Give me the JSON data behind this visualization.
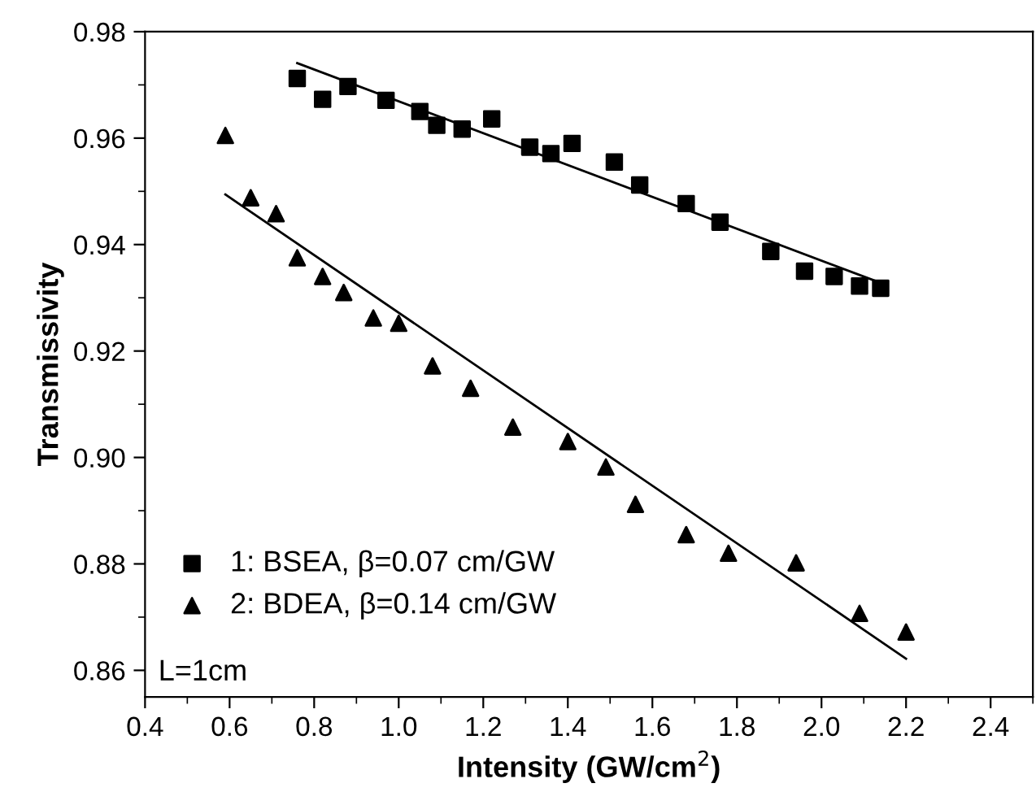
{
  "chart_data": {
    "type": "scatter",
    "xlabel": "Intensity (GW/cm$^{2}$)",
    "ylabel": "Transmissivity",
    "series": [
      {
        "name": "1: BSEA, β=0.07 cm/GW",
        "color": "#000000",
        "marker": "square",
        "x": [
          0.76,
          0.82,
          0.88,
          0.97,
          1.05,
          1.09,
          1.15,
          1.22,
          1.31,
          1.36,
          1.41,
          1.51,
          1.57,
          1.68,
          1.76,
          1.88,
          1.96,
          2.03,
          2.09,
          2.14
        ],
        "values": [
          0.9712,
          0.9673,
          0.9697,
          0.9671,
          0.965,
          0.9624,
          0.9617,
          0.9636,
          0.9583,
          0.9571,
          0.959,
          0.9555,
          0.9512,
          0.9477,
          0.9442,
          0.9387,
          0.935,
          0.934,
          0.9322,
          0.9318
        ]
      },
      {
        "name": "2: BDEA, β=0.14 cm/GW",
        "color": "#000000",
        "marker": "triangle",
        "x": [
          0.59,
          0.65,
          0.71,
          0.76,
          0.82,
          0.87,
          0.94,
          1.0,
          1.08,
          1.17,
          1.27,
          1.4,
          1.49,
          1.56,
          1.68,
          1.78,
          1.94,
          2.09,
          2.2
        ],
        "values": [
          0.9605,
          0.9488,
          0.9458,
          0.9375,
          0.934,
          0.931,
          0.9262,
          0.9252,
          0.9172,
          0.913,
          0.9057,
          0.903,
          0.8982,
          0.8912,
          0.8855,
          0.882,
          0.8802,
          0.8707,
          0.8672
        ]
      },
      {
        "type": "line",
        "color": "#000000",
        "marker": "none",
        "x": [
          0.76,
          2.14
        ],
        "values": [
          0.9741,
          0.9328
        ]
      },
      {
        "type": "line",
        "color": "#000000",
        "marker": "none",
        "x": [
          0.59,
          2.2
        ],
        "values": [
          0.9494,
          0.8622
        ]
      }
    ],
    "annotations": [
      "L=1cm"
    ],
    "legend": "bottom left",
    "grid": false,
    "xlim": [
      0.4,
      2.5
    ],
    "ylim": [
      0.855,
      0.98
    ],
    "xticks": [
      0.4,
      0.6,
      0.8,
      {
        "value": 1.0,
        "label": "1.0"
      },
      1.2,
      1.4,
      1.6,
      1.8,
      {
        "value": 2.0,
        "label": "2.0"
      },
      2.2,
      2.4
    ],
    "yticks": [
      0.86,
      {
        "value": 0.88,
        "label": "0.88"
      },
      {
        "value": 0.9,
        "label": "0.90"
      },
      0.92,
      0.94,
      0.96,
      0.98
    ]
  }
}
